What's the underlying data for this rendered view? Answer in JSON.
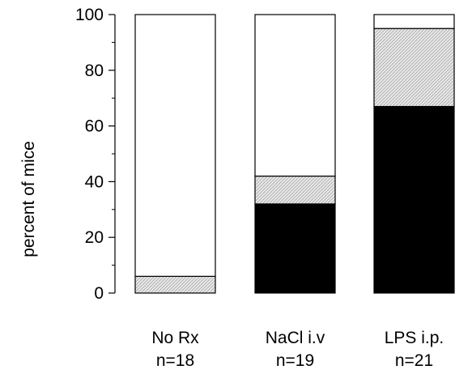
{
  "chart_data": {
    "type": "bar",
    "stacked": true,
    "title": "",
    "xlabel": "",
    "ylabel": "percent of mice",
    "ylim": [
      0,
      100
    ],
    "yticks": [
      0,
      20,
      40,
      60,
      80,
      100
    ],
    "grid": false,
    "categories": [
      "No Rx",
      "NaCl i.v",
      "LPS i.p."
    ],
    "category_counts": [
      "n=18",
      "n=19",
      "n=21"
    ],
    "series": [
      {
        "values": [
          0,
          32,
          67
        ],
        "color": "#000000",
        "pattern": "solid"
      },
      {
        "values": [
          6,
          10,
          28
        ],
        "color": "#d9d9d9",
        "pattern": "stippled"
      },
      {
        "values": [
          94,
          58,
          5
        ],
        "color": "#ffffff",
        "pattern": "none"
      }
    ]
  }
}
